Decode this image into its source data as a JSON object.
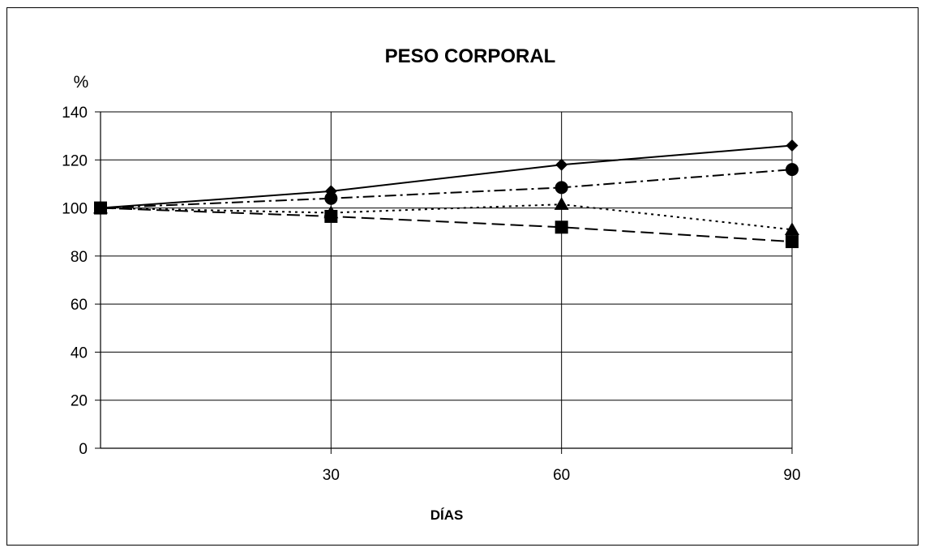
{
  "chart_data": {
    "type": "line",
    "title": "PESO CORPORAL",
    "xlabel": "DÍAS",
    "ylabel": "%",
    "x": [
      0,
      30,
      60,
      90
    ],
    "x_tick_labels": [
      "",
      "30",
      "60",
      "90"
    ],
    "y_ticks": [
      0,
      20,
      40,
      60,
      80,
      100,
      120,
      140
    ],
    "ylim": [
      0,
      140
    ],
    "xlim": [
      0,
      90
    ],
    "grid": "vertical and horizontal",
    "legend": "none",
    "series": [
      {
        "marker": "diamond",
        "line_style": "solid",
        "values": [
          100,
          107,
          118,
          126
        ]
      },
      {
        "marker": "circle",
        "line_style": "dash-dot",
        "values": [
          100,
          104,
          108.5,
          116
        ]
      },
      {
        "marker": "triangle",
        "line_style": "dotted",
        "values": [
          100,
          98,
          101.5,
          91
        ]
      },
      {
        "marker": "square",
        "line_style": "dashed",
        "values": [
          100,
          96.5,
          92,
          86
        ]
      }
    ],
    "colors": {
      "line": "#000000",
      "grid": "#000000",
      "background": "#ffffff"
    }
  }
}
